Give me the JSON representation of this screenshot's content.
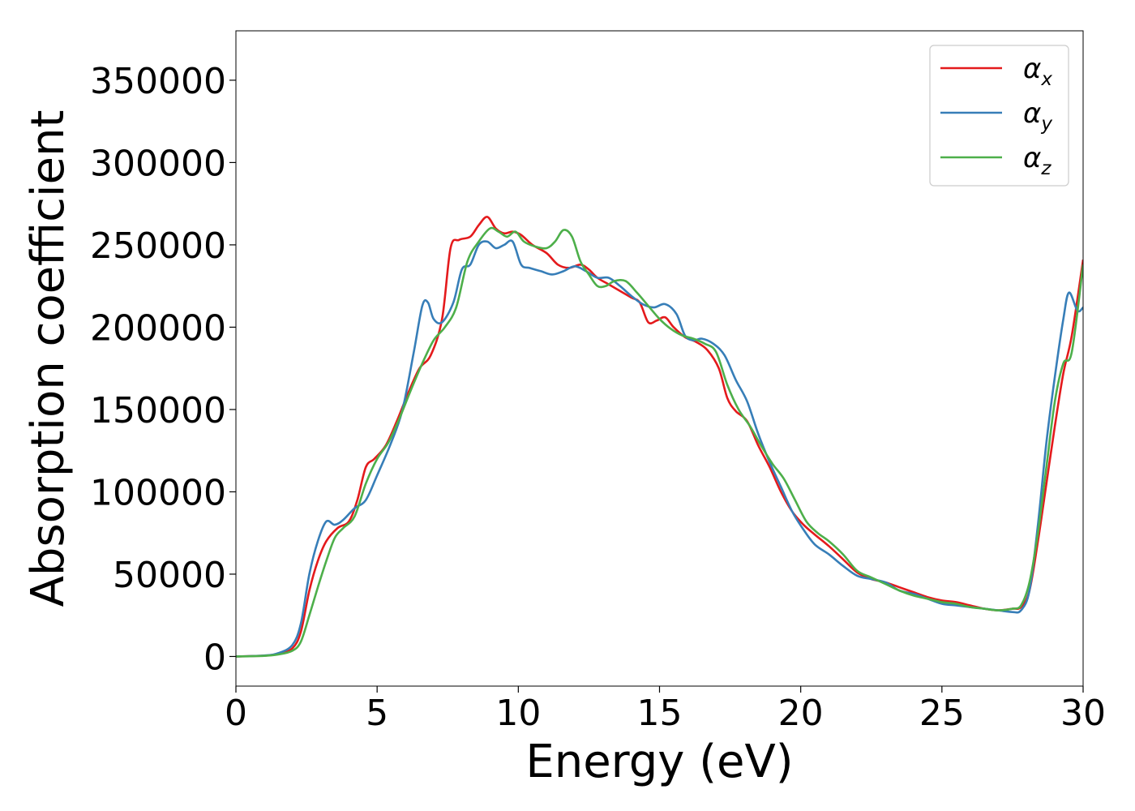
{
  "chart_data": {
    "type": "line",
    "xlabel": "Energy (eV)",
    "ylabel": "Absorption coefficient",
    "xlim": [
      0,
      30
    ],
    "ylim": [
      -18000,
      380000
    ],
    "xticks": [
      0,
      5,
      10,
      15,
      20,
      25,
      30
    ],
    "yticks": [
      0,
      50000,
      100000,
      150000,
      200000,
      250000,
      300000,
      350000
    ],
    "grid": false,
    "legend_position": "top-right",
    "series": [
      {
        "name": "αx",
        "symbol": "α",
        "subscript": "x",
        "color": "#e41a1c",
        "x": [
          0,
          1,
          1.5,
          2,
          2.3,
          2.6,
          2.9,
          3.2,
          3.6,
          4.0,
          4.3,
          4.6,
          4.9,
          5.3,
          5.7,
          6.1,
          6.5,
          6.9,
          7.3,
          7.6,
          7.9,
          8.3,
          8.6,
          8.9,
          9.2,
          9.5,
          9.8,
          10.1,
          10.5,
          11.0,
          11.4,
          11.8,
          12.2,
          12.5,
          12.8,
          13.2,
          13.6,
          14.0,
          14.3,
          14.6,
          14.9,
          15.2,
          15.5,
          15.9,
          16.3,
          16.7,
          17.1,
          17.4,
          17.7,
          18.1,
          18.5,
          18.9,
          19.3,
          19.7,
          20.1,
          20.5,
          21.0,
          21.5,
          22.0,
          22.5,
          23.0,
          23.5,
          24.0,
          24.5,
          25.0,
          25.5,
          26.0,
          26.5,
          27.0,
          27.5,
          27.8,
          28.1,
          28.4,
          28.7,
          29.0,
          29.3,
          29.6,
          30.0
        ],
        "values": [
          0,
          500,
          1500,
          5000,
          15000,
          40000,
          58000,
          70000,
          78000,
          82000,
          95000,
          115000,
          120000,
          128000,
          143000,
          160000,
          175000,
          183000,
          205000,
          248000,
          253000,
          255000,
          262000,
          267000,
          260000,
          257000,
          258000,
          256000,
          250000,
          245000,
          238000,
          236000,
          238000,
          235000,
          230000,
          226000,
          222000,
          218000,
          215000,
          203000,
          204000,
          206000,
          200000,
          194000,
          191000,
          186000,
          175000,
          157000,
          149000,
          143000,
          128000,
          115000,
          100000,
          88000,
          80000,
          74000,
          67000,
          59000,
          51000,
          47000,
          45000,
          42000,
          39000,
          36000,
          34000,
          33000,
          31000,
          29000,
          28000,
          29000,
          30000,
          40000,
          70000,
          105000,
          140000,
          172000,
          195000,
          241000
        ]
      },
      {
        "name": "αy",
        "symbol": "α",
        "subscript": "y",
        "color": "#377eb8",
        "x": [
          0,
          1,
          1.5,
          2,
          2.3,
          2.6,
          2.9,
          3.2,
          3.5,
          3.8,
          4.2,
          4.6,
          5.0,
          5.5,
          5.9,
          6.3,
          6.6,
          6.8,
          7.0,
          7.3,
          7.7,
          8.0,
          8.3,
          8.6,
          8.9,
          9.2,
          9.5,
          9.8,
          10.1,
          10.4,
          10.8,
          11.2,
          11.6,
          12.0,
          12.4,
          12.8,
          13.2,
          13.6,
          14.0,
          14.4,
          14.8,
          15.2,
          15.6,
          15.9,
          16.2,
          16.5,
          16.9,
          17.3,
          17.7,
          18.1,
          18.5,
          18.9,
          19.3,
          19.7,
          20.1,
          20.5,
          21.0,
          21.5,
          22.0,
          22.5,
          23.0,
          23.5,
          24.0,
          24.5,
          25.0,
          25.5,
          26.0,
          26.5,
          27.0,
          27.5,
          27.8,
          28.1,
          28.4,
          28.7,
          29.0,
          29.3,
          29.5,
          29.8,
          30.0
        ],
        "values": [
          0,
          600,
          2000,
          7000,
          20000,
          50000,
          70000,
          82000,
          80000,
          83000,
          90000,
          95000,
          110000,
          130000,
          150000,
          185000,
          213000,
          215000,
          205000,
          203000,
          215000,
          235000,
          238000,
          250000,
          252000,
          248000,
          250000,
          252000,
          238000,
          236000,
          234000,
          232000,
          234000,
          237000,
          234000,
          230000,
          230000,
          225000,
          219000,
          214000,
          212000,
          214000,
          208000,
          195000,
          192000,
          193000,
          190000,
          183000,
          168000,
          155000,
          135000,
          118000,
          103000,
          88000,
          77000,
          68000,
          62000,
          55000,
          49000,
          47000,
          45000,
          40000,
          38000,
          35000,
          32000,
          31000,
          30000,
          29000,
          28000,
          27000,
          28000,
          40000,
          80000,
          130000,
          170000,
          205000,
          221000,
          210000,
          212000
        ]
      },
      {
        "name": "αz",
        "symbol": "α",
        "subscript": "z",
        "color": "#4daf4a",
        "x": [
          0,
          1,
          1.5,
          2,
          2.3,
          2.6,
          2.9,
          3.2,
          3.5,
          3.8,
          4.2,
          4.6,
          5.0,
          5.4,
          5.8,
          6.2,
          6.6,
          7.0,
          7.4,
          7.8,
          8.2,
          8.6,
          9.0,
          9.3,
          9.6,
          9.9,
          10.2,
          10.6,
          11.0,
          11.3,
          11.6,
          11.9,
          12.2,
          12.5,
          12.8,
          13.1,
          13.4,
          13.8,
          14.2,
          14.6,
          15.0,
          15.4,
          15.8,
          16.2,
          16.6,
          17.0,
          17.4,
          17.8,
          18.2,
          18.6,
          19.0,
          19.4,
          19.8,
          20.2,
          20.6,
          21.0,
          21.5,
          22.0,
          22.5,
          23.0,
          23.5,
          24.0,
          24.5,
          25.0,
          25.5,
          26.0,
          26.5,
          27.0,
          27.5,
          27.8,
          28.1,
          28.4,
          28.7,
          29.0,
          29.3,
          29.6,
          30.0
        ],
        "values": [
          0,
          400,
          1200,
          3500,
          9000,
          25000,
          42000,
          58000,
          72000,
          78000,
          85000,
          105000,
          120000,
          130000,
          145000,
          162000,
          178000,
          192000,
          200000,
          212000,
          240000,
          252000,
          260000,
          258000,
          255000,
          258000,
          252000,
          249000,
          248000,
          252000,
          259000,
          255000,
          240000,
          232000,
          225000,
          225000,
          228000,
          228000,
          221000,
          213000,
          205000,
          199000,
          195000,
          193000,
          190000,
          185000,
          165000,
          150000,
          140000,
          128000,
          117000,
          108000,
          95000,
          82000,
          75000,
          70000,
          62000,
          52000,
          48000,
          44000,
          40000,
          37000,
          35000,
          33000,
          32000,
          30000,
          29000,
          28000,
          29000,
          31000,
          45000,
          75000,
          115000,
          155000,
          178000,
          185000,
          238000
        ]
      }
    ]
  }
}
